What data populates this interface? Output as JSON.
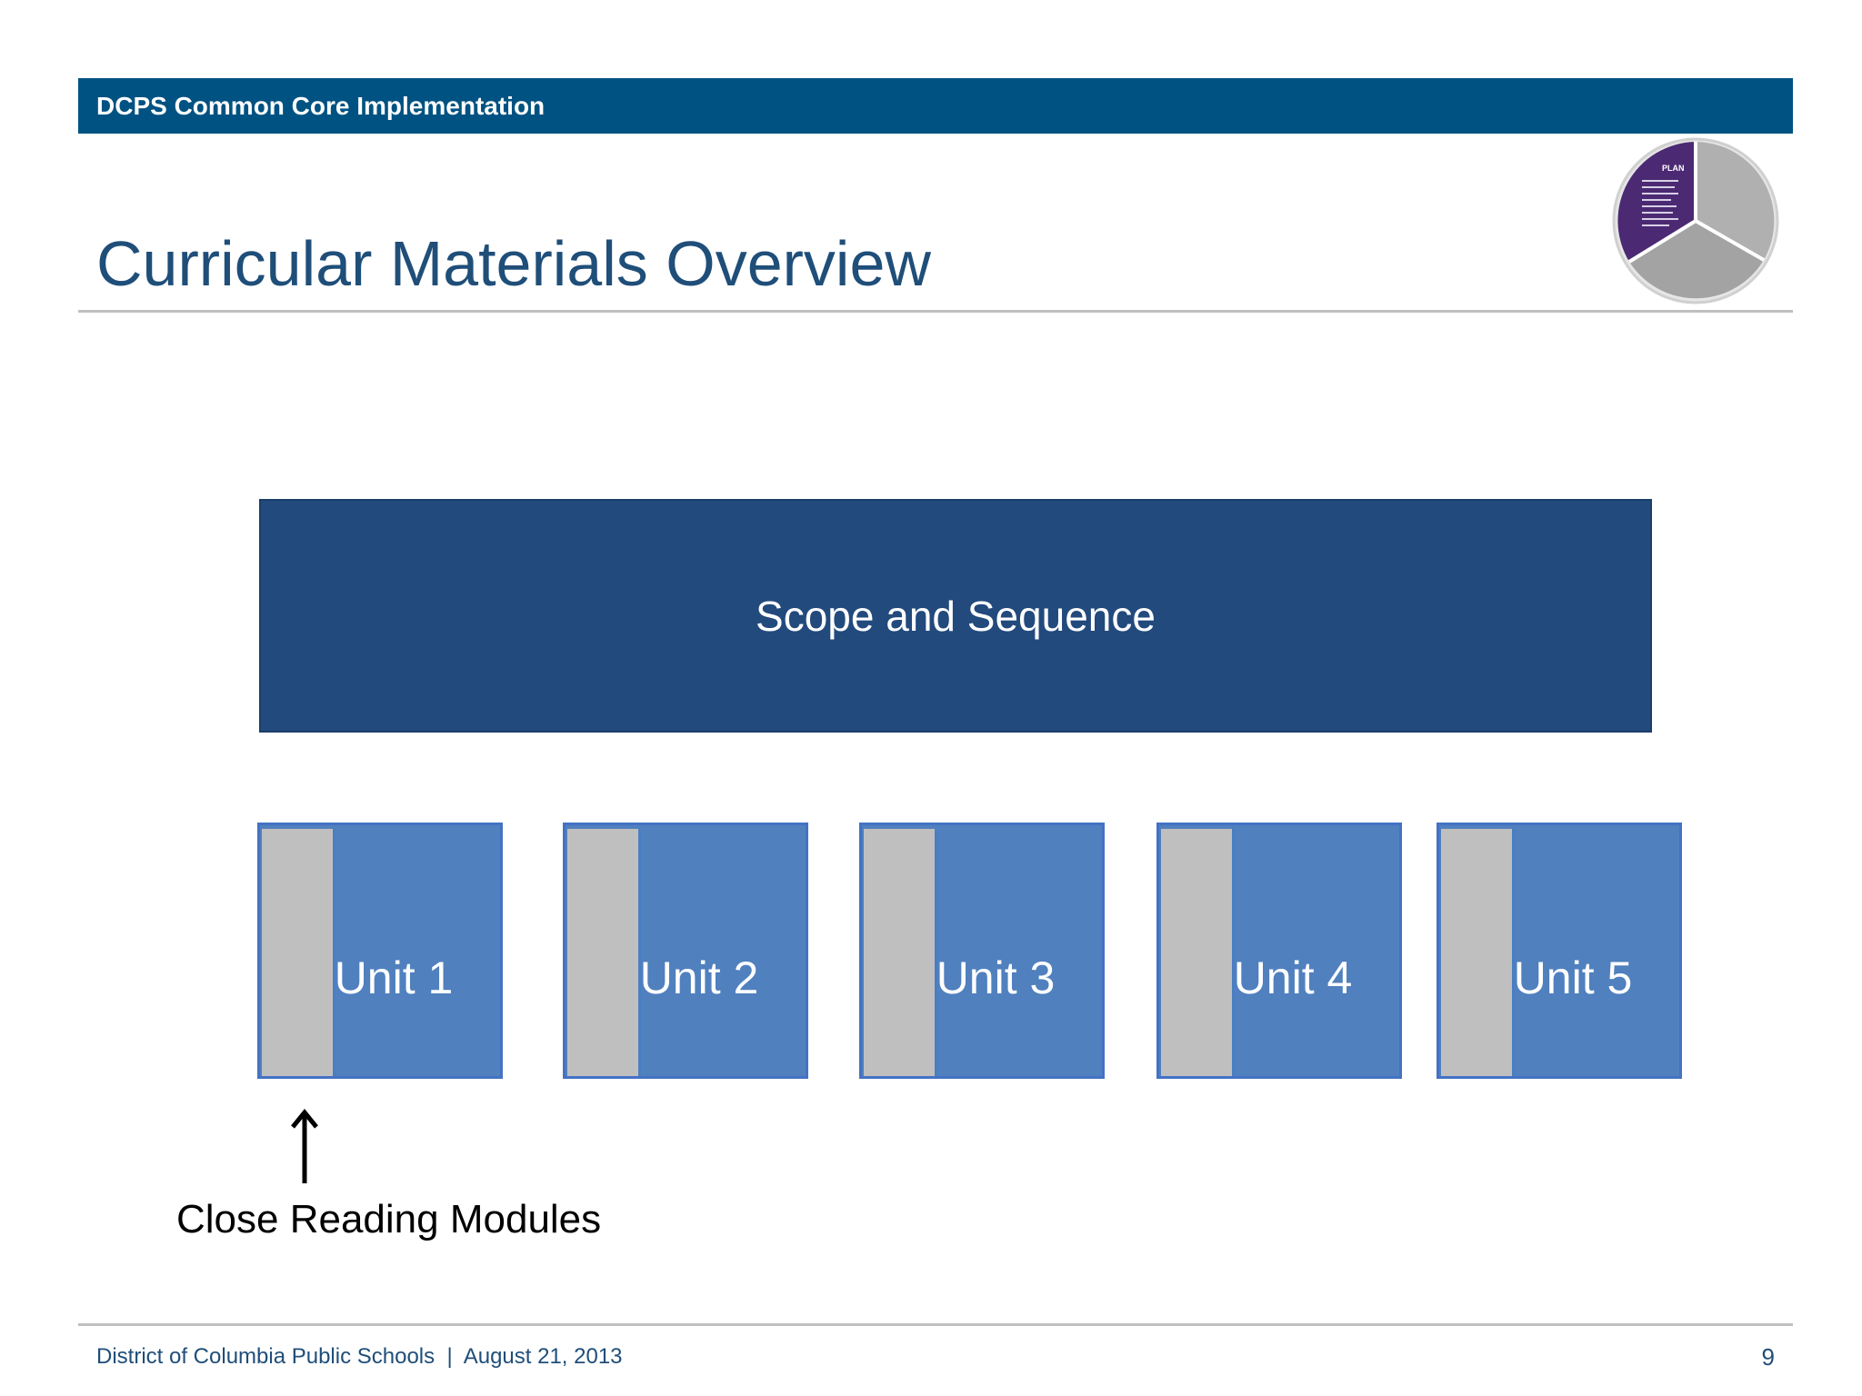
{
  "header": {
    "banner": "DCPS Common Core Implementation"
  },
  "title": "Curricular Materials Overview",
  "logo": {
    "icon": "plan-cycle-icon",
    "segment_label": "PLAN",
    "colors": {
      "active": "#4b2a73",
      "inactive": "#a6a6a6"
    }
  },
  "diagram": {
    "scope_label": "Scope and Sequence",
    "units": [
      {
        "label": "Unit 1"
      },
      {
        "label": "Unit 2"
      },
      {
        "label": "Unit 3"
      },
      {
        "label": "Unit 4"
      },
      {
        "label": "Unit 5"
      }
    ],
    "callout": "Close Reading Modules"
  },
  "footer": {
    "text": "District of Columbia Public Schools  |  August 21, 2013",
    "page_number": "9"
  }
}
